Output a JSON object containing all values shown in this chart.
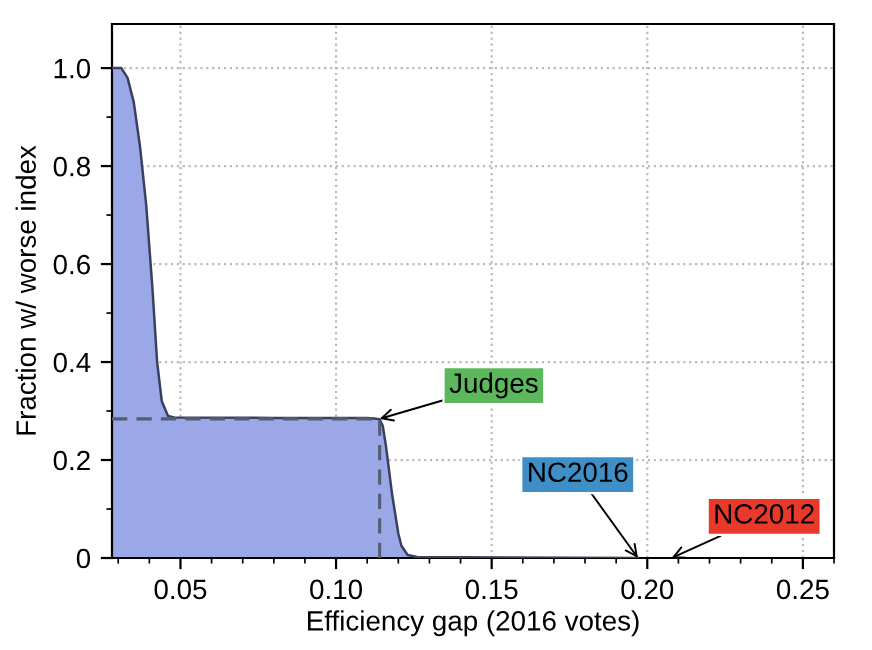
{
  "chart_data": {
    "type": "area",
    "xlabel": "Efficiency gap (2016 votes)",
    "ylabel": "Fraction w/ worse index",
    "series": [
      {
        "color": "#9aa8e8",
        "x": [
          0.028,
          0.031,
          0.033,
          0.035,
          0.037,
          0.039,
          0.041,
          0.0425,
          0.044,
          0.046,
          0.048,
          0.08,
          0.11,
          0.113,
          0.114,
          0.115,
          0.116,
          0.117,
          0.118,
          0.119,
          0.12,
          0.121,
          0.123,
          0.126,
          0.197
        ],
        "values": [
          1.0,
          1.0,
          0.98,
          0.93,
          0.84,
          0.72,
          0.55,
          0.4,
          0.32,
          0.29,
          0.287,
          0.286,
          0.286,
          0.284,
          0.283,
          0.27,
          0.23,
          0.18,
          0.13,
          0.09,
          0.05,
          0.025,
          0.006,
          0.002,
          0.0
        ]
      }
    ],
    "xlim": [
      0.028,
      0.26
    ],
    "ylim": [
      0,
      1.09
    ],
    "xticks": [
      {
        "value": 0.05,
        "label": "0.05"
      },
      {
        "value": 0.1,
        "label": "0.10"
      },
      {
        "value": 0.15,
        "label": "0.15"
      },
      {
        "value": 0.2,
        "label": "0.20"
      },
      {
        "value": 0.25,
        "label": "0.25"
      }
    ],
    "yticks": [
      0,
      {
        "value": 0.2,
        "label": "0.2"
      },
      {
        "value": 0.4,
        "label": "0.4"
      },
      {
        "value": 0.6,
        "label": "0.6"
      },
      {
        "value": 0.8,
        "label": "0.8"
      },
      {
        "value": 1.0,
        "label": "1.0"
      }
    ],
    "grid": true,
    "ref_lines": [
      {
        "axis": "y",
        "value": 0.284,
        "line_style": "dashed",
        "color": "#555c70"
      },
      {
        "axis": "x",
        "value": 0.114,
        "line_style": "dashed",
        "color": "#555c70"
      }
    ],
    "annotations": [
      {
        "text": "Judges",
        "x": 0.114,
        "y": 0.284
      },
      {
        "text": "NC2016",
        "x": 0.197,
        "y": 0
      },
      "NC2012"
    ]
  }
}
